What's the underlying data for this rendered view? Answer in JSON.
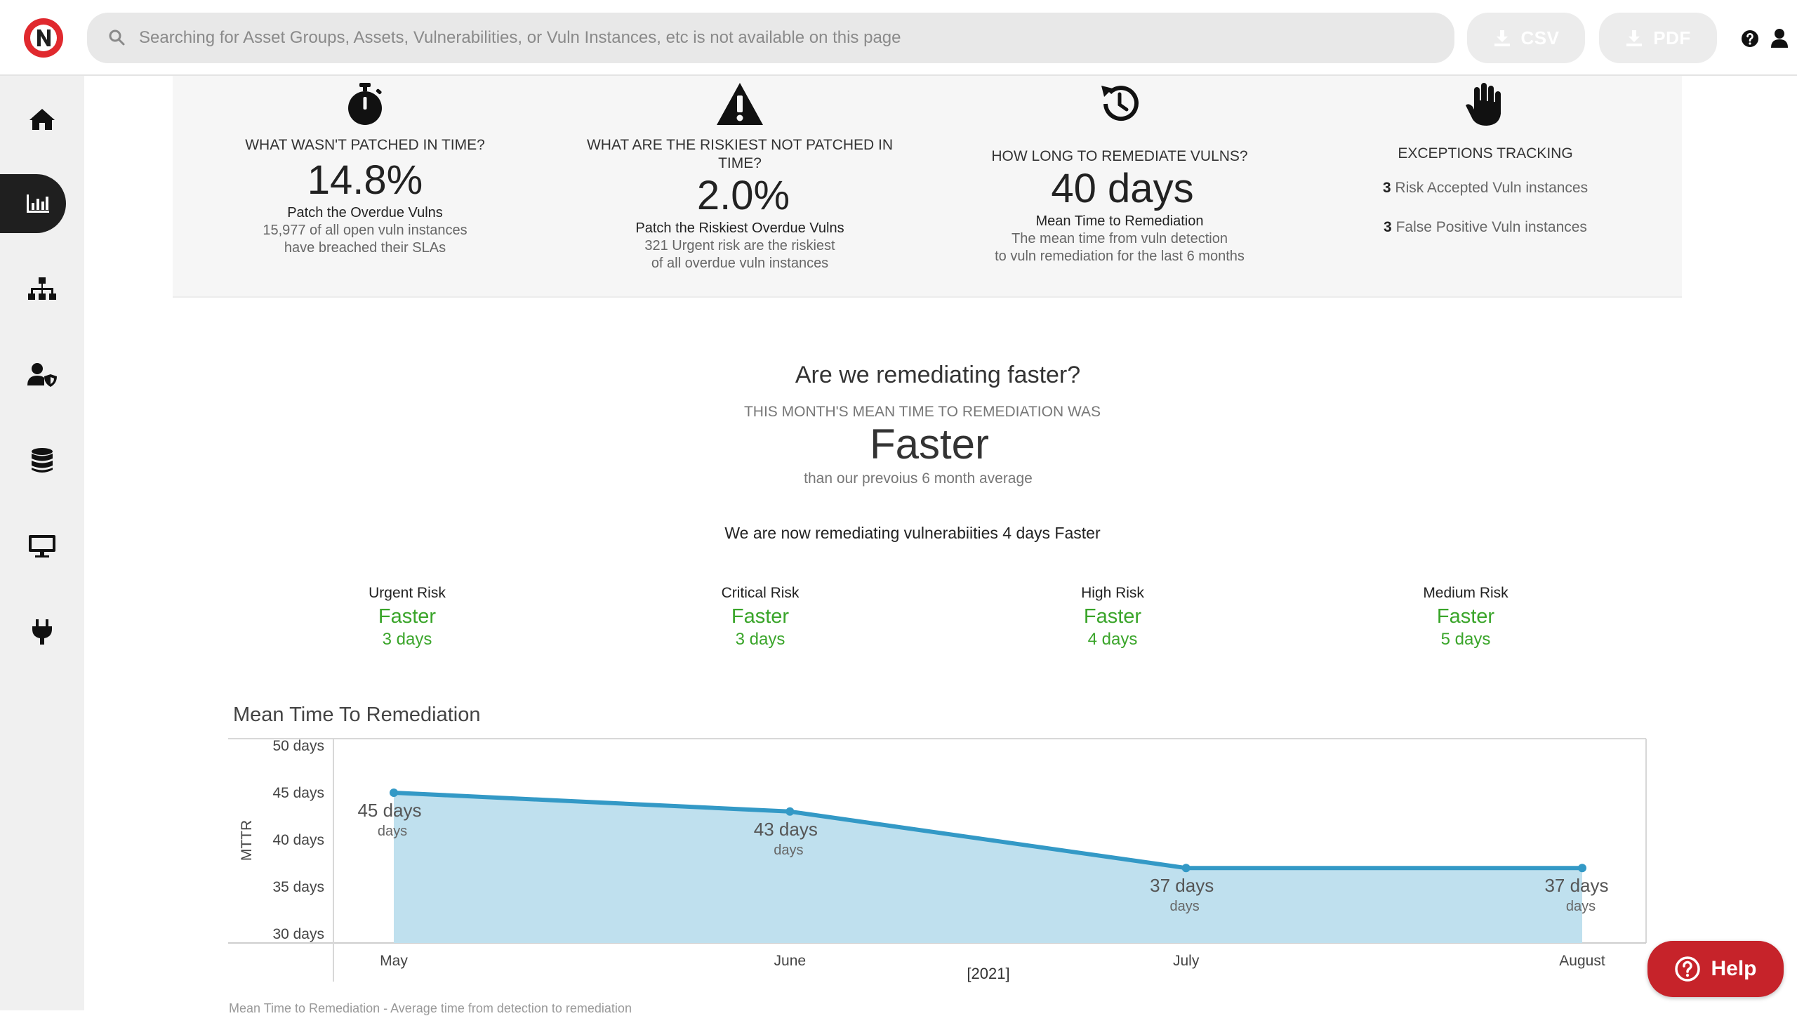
{
  "topbar": {
    "search_placeholder": "Searching for Asset Groups, Assets, Vulnerabilities, or Vuln Instances, etc is not available on this page",
    "csv_label": "CSV",
    "pdf_label": "PDF"
  },
  "sidebar": {
    "items": [
      {
        "name": "home",
        "icon": "home-icon"
      },
      {
        "name": "dashboards",
        "icon": "bar-chart-icon",
        "active": true
      },
      {
        "name": "asset-groups",
        "icon": "sitemap-icon"
      },
      {
        "name": "users",
        "icon": "user-shield-icon"
      },
      {
        "name": "database",
        "icon": "database-icon"
      },
      {
        "name": "assets",
        "icon": "desktop-icon"
      },
      {
        "name": "integrations",
        "icon": "plug-icon"
      }
    ]
  },
  "summary": {
    "overdue": {
      "question": "WHAT WASN'T PATCHED IN TIME?",
      "value": "14.8%",
      "subtitle": "Patch the Overdue Vulns",
      "desc_line1": "15,977 of all open vuln instances",
      "desc_line2": "have breached their SLAs"
    },
    "riskiest": {
      "question_line1": "WHAT ARE THE RISKIEST NOT PATCHED IN",
      "question_line2": "TIME?",
      "value": "2.0%",
      "subtitle": "Patch the Riskiest Overdue Vulns",
      "desc_line1": "321 Urgent risk are the riskiest",
      "desc_line2": "of all overdue vuln instances"
    },
    "mttr": {
      "question": "HOW LONG TO REMEDIATE VULNS?",
      "value": "40 days",
      "subtitle": "Mean Time to Remediation",
      "desc_line1": "The mean time from vuln detection",
      "desc_line2": "to vuln remediation for the last 6 months"
    },
    "exceptions": {
      "title": "EXCEPTIONS TRACKING",
      "risk_accepted_count": "3",
      "risk_accepted_label": "Risk Accepted Vuln instances",
      "false_positive_count": "3",
      "false_positive_label": "False Positive Vuln instances"
    }
  },
  "remediation": {
    "headline": "Are we remediating faster?",
    "caption": "THIS MONTH'S MEAN TIME TO REMEDIATION WAS",
    "verdict": "Faster",
    "comparison": "than our prevoius 6 month average",
    "statement": "We are now remediating vulnerabiities 4 days Faster",
    "risks": [
      {
        "label": "Urgent Risk",
        "status": "Faster",
        "days": "3 days"
      },
      {
        "label": "Critical Risk",
        "status": "Faster",
        "days": "3 days"
      },
      {
        "label": "High Risk",
        "status": "Faster",
        "days": "4 days"
      },
      {
        "label": "Medium Risk",
        "status": "Faster",
        "days": "5 days"
      }
    ],
    "status_color": "#3aa52a"
  },
  "chart_data": {
    "type": "area",
    "title": "Mean Time To Remediation",
    "ylabel": "MTTR",
    "xlabel": "[2021]",
    "categories": [
      "May",
      "June",
      "July",
      "August"
    ],
    "series": [
      {
        "values": [
          45,
          43,
          37,
          37
        ]
      }
    ],
    "data_labels": [
      "45 days",
      "43 days",
      "37 days",
      "37 days"
    ],
    "data_sublabels": [
      "days",
      "days",
      "days",
      "days"
    ],
    "ylim": [
      30,
      50
    ],
    "yticks": [
      "50 days",
      "45 days",
      "40 days",
      "35 days",
      "30 days"
    ],
    "ytick_values": [
      50,
      45,
      40,
      35,
      30
    ],
    "line_color": "#3399c6",
    "fill_color": "#bfe0ee",
    "grid": false
  },
  "footnote": "Mean Time to Remediation - Average time from detection to remediation",
  "help": {
    "label": "Help"
  },
  "brand_color": "#e0292e"
}
